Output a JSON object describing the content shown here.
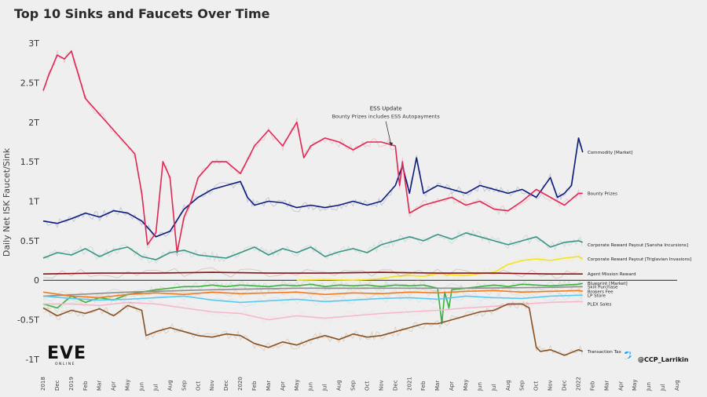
{
  "title": "Top 10 Sinks and Faucets Over Time",
  "chart_data": {
    "type": "line",
    "title": "Top 10 Sinks and Faucets Over Time",
    "xlabel": "",
    "ylabel": "Daily Net ISK Faucet/Sink",
    "ylim": [
      -1.1,
      3.1
    ],
    "y_ticks": [
      {
        "value": 3,
        "label": "3T"
      },
      {
        "value": 2.5,
        "label": "2.5T"
      },
      {
        "value": 2,
        "label": "2T"
      },
      {
        "value": 1.5,
        "label": "1.5T"
      },
      {
        "value": 1,
        "label": "1T"
      },
      {
        "value": 0.5,
        "label": "0.5T"
      },
      {
        "value": 0,
        "label": "0"
      },
      {
        "value": -0.5,
        "label": "-0.5T"
      },
      {
        "value": -1,
        "label": "-1T"
      }
    ],
    "x_range": [
      0,
      45
    ],
    "x_ticks": [
      "2018",
      "Dec",
      "2019",
      "Feb",
      "Mar",
      "Apr",
      "May",
      "Jun",
      "Jul",
      "Aug",
      "Sep",
      "Oct",
      "Nov",
      "Dec",
      "2020",
      "Feb",
      "Mar",
      "Apr",
      "May",
      "Jun",
      "Jul",
      "Aug",
      "Sep",
      "Oct",
      "Nov",
      "Dec",
      "2021",
      "Feb",
      "Mar",
      "Apr",
      "May",
      "Jun",
      "Jul",
      "Aug",
      "Sep",
      "Oct",
      "Nov",
      "Dec",
      "2022",
      "Feb",
      "Mar",
      "Apr",
      "May",
      "Jun",
      "Jul",
      "Aug"
    ],
    "series": [
      {
        "name": "Commodity [Market]",
        "color": "#0d1b7a",
        "label_y": 1.62,
        "x": [
          0,
          1,
          2,
          3,
          4,
          5,
          6,
          7,
          8,
          9,
          10,
          11,
          12,
          13,
          14,
          14.5,
          15,
          16,
          17,
          18,
          19,
          20,
          21,
          22,
          23,
          24,
          25,
          25.5,
          26,
          26.5,
          27,
          28,
          29,
          30,
          31,
          32,
          33,
          34,
          35,
          36,
          36.5,
          37,
          37.5,
          38,
          38.3
        ],
        "values": [
          0.75,
          0.72,
          0.78,
          0.85,
          0.8,
          0.88,
          0.85,
          0.75,
          0.55,
          0.62,
          0.9,
          1.05,
          1.15,
          1.2,
          1.25,
          1.05,
          0.95,
          1.0,
          0.98,
          0.92,
          0.95,
          0.92,
          0.95,
          1.0,
          0.95,
          1.0,
          1.2,
          1.45,
          1.1,
          1.55,
          1.1,
          1.2,
          1.15,
          1.1,
          1.2,
          1.15,
          1.1,
          1.15,
          1.05,
          1.3,
          1.05,
          1.1,
          1.2,
          1.8,
          1.62
        ]
      },
      {
        "name": "Bounty Prizes",
        "color": "#e02753",
        "label_y": 1.1,
        "x": [
          0,
          0.4,
          1,
          1.5,
          2,
          2.5,
          3,
          4,
          5,
          6,
          6.5,
          7,
          7.4,
          8,
          8.5,
          9,
          9.5,
          10,
          10.5,
          11,
          12,
          13,
          14,
          15,
          16,
          17,
          18,
          18.5,
          19,
          20,
          21,
          22,
          23,
          24,
          25,
          25.3,
          25.5,
          26,
          27,
          28,
          29,
          30,
          31,
          32,
          33,
          34,
          35,
          36,
          37,
          38,
          38.3
        ],
        "values": [
          2.4,
          2.6,
          2.85,
          2.8,
          2.9,
          2.6,
          2.3,
          2.1,
          1.9,
          1.7,
          1.6,
          1.1,
          0.45,
          0.6,
          1.5,
          1.3,
          0.35,
          0.8,
          1.0,
          1.3,
          1.5,
          1.5,
          1.35,
          1.7,
          1.9,
          1.7,
          2.0,
          1.55,
          1.7,
          1.8,
          1.75,
          1.65,
          1.75,
          1.75,
          1.7,
          1.2,
          1.5,
          0.85,
          0.95,
          1.0,
          1.05,
          0.95,
          1.0,
          0.9,
          0.88,
          1.0,
          1.15,
          1.05,
          0.95,
          1.1,
          1.1
        ]
      },
      {
        "name": "Corporate Reward Payout [Sansha Incursions]",
        "color": "#3a9485",
        "label_y": 0.45,
        "x": [
          0,
          1,
          2,
          3,
          4,
          5,
          6,
          7,
          8,
          9,
          10,
          11,
          12,
          13,
          14,
          15,
          16,
          17,
          18,
          19,
          20,
          21,
          22,
          23,
          24,
          25,
          26,
          27,
          28,
          29,
          30,
          31,
          32,
          33,
          34,
          35,
          36,
          37,
          38,
          38.3
        ],
        "values": [
          0.28,
          0.35,
          0.32,
          0.4,
          0.3,
          0.38,
          0.42,
          0.3,
          0.26,
          0.35,
          0.38,
          0.32,
          0.3,
          0.28,
          0.35,
          0.42,
          0.32,
          0.4,
          0.35,
          0.42,
          0.3,
          0.36,
          0.4,
          0.35,
          0.45,
          0.5,
          0.55,
          0.5,
          0.58,
          0.52,
          0.6,
          0.55,
          0.5,
          0.45,
          0.5,
          0.55,
          0.42,
          0.48,
          0.5,
          0.48
        ]
      },
      {
        "name": "Corporate Reward Payout [Triglavian Invasions]",
        "color": "#f4e21a",
        "label_y": 0.27,
        "x": [
          18,
          20,
          22,
          24,
          25,
          26,
          27,
          28,
          29,
          30,
          31,
          32,
          33,
          34,
          35,
          36,
          37,
          38,
          38.3
        ],
        "values": [
          0,
          0.01,
          0.0,
          0.02,
          0.05,
          0.06,
          0.05,
          0.08,
          0.07,
          0.06,
          0.08,
          0.1,
          0.2,
          0.25,
          0.27,
          0.25,
          0.28,
          0.3,
          0.27
        ]
      },
      {
        "name": "Agent Mission Reward",
        "color": "#8b1212",
        "label_y": 0.08,
        "x": [
          0,
          4,
          8,
          12,
          16,
          20,
          24,
          28,
          32,
          36,
          38.3
        ],
        "values": [
          0.08,
          0.09,
          0.09,
          0.1,
          0.09,
          0.09,
          0.1,
          0.09,
          0.09,
          0.08,
          0.08
        ]
      },
      {
        "name": "Blueprint [Market]",
        "color": "#3bb043",
        "label_y": -0.04,
        "x": [
          0,
          1,
          2,
          3,
          4,
          5,
          6,
          7,
          8,
          9,
          10,
          11,
          12,
          13,
          14,
          15,
          16,
          17,
          18,
          19,
          20,
          21,
          22,
          23,
          24,
          25,
          26,
          27,
          28,
          28.3,
          28.5,
          28.8,
          29,
          30,
          31,
          32,
          33,
          34,
          35,
          36,
          37,
          38,
          38.3
        ],
        "values": [
          -0.3,
          -0.35,
          -0.2,
          -0.28,
          -0.22,
          -0.25,
          -0.18,
          -0.15,
          -0.12,
          -0.1,
          -0.08,
          -0.08,
          -0.06,
          -0.08,
          -0.06,
          -0.07,
          -0.08,
          -0.06,
          -0.07,
          -0.05,
          -0.08,
          -0.06,
          -0.07,
          -0.06,
          -0.08,
          -0.06,
          -0.07,
          -0.06,
          -0.1,
          -0.55,
          -0.15,
          -0.35,
          -0.12,
          -0.1,
          -0.08,
          -0.06,
          -0.08,
          -0.05,
          -0.06,
          -0.07,
          -0.06,
          -0.05,
          -0.04
        ]
      },
      {
        "name": "Skill Purchase",
        "color": "#8f8f8f",
        "label_y": -0.08,
        "x": [
          0,
          6,
          12,
          18,
          24,
          30,
          36,
          38.3
        ],
        "values": [
          -0.2,
          -0.15,
          -0.12,
          -0.1,
          -0.1,
          -0.1,
          -0.09,
          -0.08
        ]
      },
      {
        "name": "Brokers Fee",
        "color": "#f07c22",
        "label_y": -0.14,
        "x": [
          0,
          2,
          4,
          6,
          8,
          10,
          12,
          14,
          16,
          18,
          20,
          22,
          24,
          26,
          28,
          30,
          32,
          34,
          36,
          38,
          38.3
        ],
        "values": [
          -0.15,
          -0.2,
          -0.22,
          -0.18,
          -0.16,
          -0.18,
          -0.15,
          -0.17,
          -0.16,
          -0.15,
          -0.18,
          -0.16,
          -0.17,
          -0.15,
          -0.16,
          -0.14,
          -0.13,
          -0.15,
          -0.14,
          -0.13,
          -0.14
        ]
      },
      {
        "name": "LP Store",
        "color": "#5cc8ee",
        "label_y": -0.19,
        "x": [
          0,
          2,
          4,
          6,
          8,
          10,
          12,
          14,
          16,
          18,
          20,
          22,
          24,
          26,
          28,
          30,
          32,
          34,
          36,
          38,
          38.3
        ],
        "values": [
          -0.2,
          -0.23,
          -0.25,
          -0.24,
          -0.22,
          -0.2,
          -0.25,
          -0.28,
          -0.26,
          -0.24,
          -0.27,
          -0.25,
          -0.23,
          -0.22,
          -0.24,
          -0.2,
          -0.22,
          -0.23,
          -0.2,
          -0.19,
          -0.19
        ]
      },
      {
        "name": "PLEX Sales",
        "color": "#f6b8c8",
        "label_y": -0.3,
        "x": [
          0,
          2,
          4,
          6,
          8,
          10,
          12,
          14,
          16,
          18,
          20,
          22,
          24,
          26,
          28,
          30,
          32,
          34,
          36,
          38,
          38.3
        ],
        "values": [
          -0.3,
          -0.3,
          -0.32,
          -0.28,
          -0.3,
          -0.35,
          -0.4,
          -0.42,
          -0.5,
          -0.45,
          -0.48,
          -0.45,
          -0.42,
          -0.4,
          -0.38,
          -0.35,
          -0.33,
          -0.3,
          -0.28,
          -0.27,
          -0.27
        ]
      },
      {
        "name": "Transaction Tax",
        "color": "#8a5222",
        "label_y": -0.9,
        "x": [
          0,
          1,
          2,
          3,
          4,
          5,
          6,
          7,
          7.3,
          8,
          9,
          10,
          11,
          12,
          13,
          14,
          15,
          16,
          17,
          18,
          19,
          20,
          21,
          22,
          23,
          24,
          25,
          26,
          27,
          28,
          29,
          30,
          31,
          32,
          33,
          34,
          34.5,
          35,
          35.3,
          36,
          37,
          38,
          38.3
        ],
        "values": [
          -0.35,
          -0.45,
          -0.38,
          -0.42,
          -0.36,
          -0.45,
          -0.32,
          -0.38,
          -0.7,
          -0.65,
          -0.6,
          -0.65,
          -0.7,
          -0.72,
          -0.68,
          -0.7,
          -0.8,
          -0.85,
          -0.78,
          -0.82,
          -0.75,
          -0.7,
          -0.75,
          -0.68,
          -0.72,
          -0.7,
          -0.65,
          -0.6,
          -0.55,
          -0.55,
          -0.5,
          -0.45,
          -0.4,
          -0.38,
          -0.3,
          -0.3,
          -0.35,
          -0.85,
          -0.9,
          -0.88,
          -0.95,
          -0.88,
          -0.9
        ]
      }
    ],
    "annotations": [
      {
        "x": 24.6,
        "y": 1.7,
        "title": "ESS Update",
        "text": "Bounty Prizes includes ESS Autopayments"
      }
    ],
    "legend_position": "right-of-lines"
  },
  "logo": {
    "main": "EVE",
    "sub": "ONLINE"
  },
  "credit": "@CCP_Larrikin",
  "colors": {
    "background": "#efefef",
    "zero_line": "#222222",
    "twitter": "#1da1f2"
  }
}
